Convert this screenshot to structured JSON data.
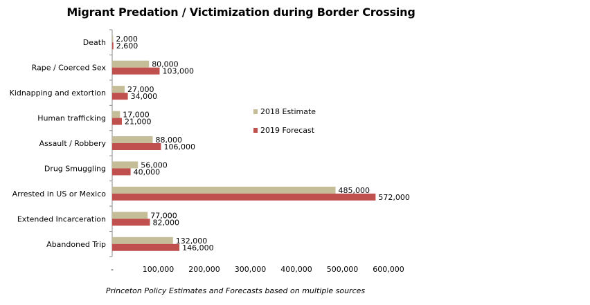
{
  "header": {
    "title": "Migrant Predation / Victimization during Border Crossing"
  },
  "footer": {
    "caption": "Princeton Policy Estimates and Forecasts based on multiple sources"
  },
  "chart_data": {
    "type": "bar",
    "orientation": "horizontal",
    "title": "Migrant Predation / Victimization during Border Crossing",
    "categories": [
      "Death",
      "Rape / Coerced Sex",
      "Kidnapping and extortion",
      "Human trafficking",
      "Assault / Robbery",
      "Drug Smuggling",
      "Arrested in US or Mexico",
      "Extended Incarceration",
      "Abandoned Trip"
    ],
    "series": [
      {
        "name": "2018 Estimate",
        "color": "#c4bd97",
        "values": [
          2000,
          80000,
          27000,
          17000,
          88000,
          56000,
          485000,
          77000,
          132000
        ],
        "labels": [
          "2,000",
          "80,000",
          "27,000",
          "17,000",
          "88,000",
          "56,000",
          "485,000",
          "77,000",
          "132,000"
        ]
      },
      {
        "name": "2019 Forecast",
        "color": "#c0504d",
        "values": [
          2600,
          103000,
          34000,
          21000,
          106000,
          40000,
          572000,
          82000,
          146000
        ],
        "labels": [
          "2,600",
          "103,000",
          "34,000",
          "21,000",
          "106,000",
          "40,000",
          "572,000",
          "82,000",
          "146,000"
        ]
      }
    ],
    "xlim": [
      0,
      600000
    ],
    "xticks": [
      0,
      100000,
      200000,
      300000,
      400000,
      500000,
      600000
    ],
    "xtick_labels": [
      "-",
      "100,000",
      "200,000",
      "300,000",
      "400,000",
      "500,000",
      "600,000"
    ],
    "grid": false,
    "legend_position": "right"
  }
}
